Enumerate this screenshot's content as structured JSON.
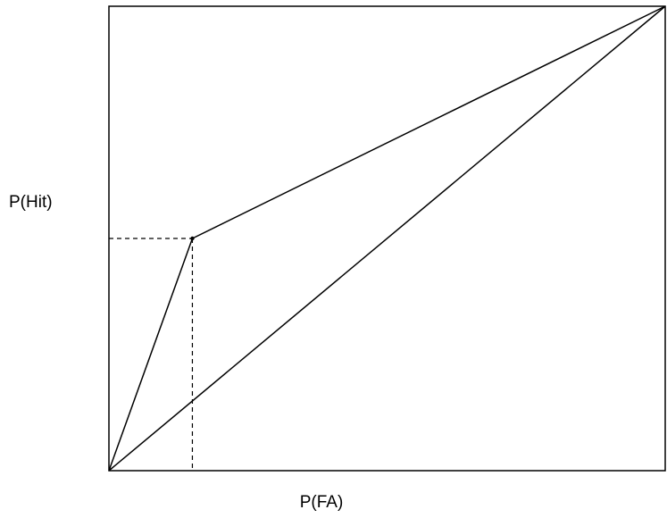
{
  "chart_data": {
    "type": "line",
    "title": "",
    "xlabel": "P(FA)",
    "ylabel": "P(Hit)",
    "xlim": [
      0,
      1
    ],
    "ylim": [
      0,
      1
    ],
    "grid": false,
    "legend": "none",
    "series": [
      {
        "role": "roc-curve",
        "points": [
          [
            0,
            0
          ],
          [
            0.15,
            0.5
          ],
          [
            1,
            1
          ]
        ]
      },
      {
        "role": "chance-diagonal",
        "points": [
          [
            0,
            0
          ],
          [
            1,
            1
          ]
        ]
      }
    ],
    "operating_point": {
      "x": 0.15,
      "y": 0.5
    },
    "colors": {
      "line": "#000000",
      "frame": "#000000",
      "background": "#ffffff"
    }
  }
}
